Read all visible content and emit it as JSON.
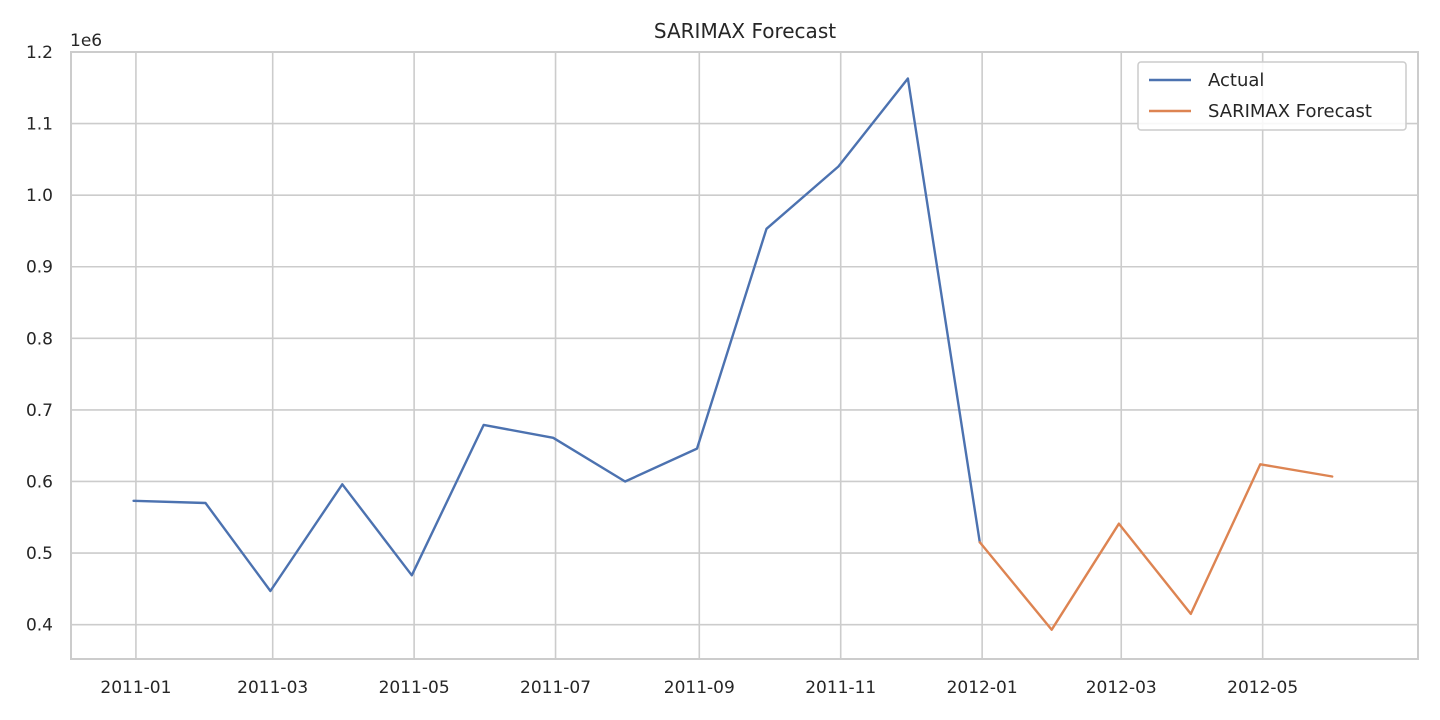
{
  "chart_data": {
    "type": "line",
    "title": "SARIMAX Forecast",
    "xlabel": "",
    "ylabel": "",
    "y_offset_text": "1e6",
    "ylim": [
      0.352,
      1.2
    ],
    "xlim": [
      "2010-12-04",
      "2012-07-07"
    ],
    "y_ticks": [
      0.4,
      0.5,
      0.6,
      0.7,
      0.8,
      0.9,
      1.0,
      1.1,
      1.2
    ],
    "y_tick_labels": [
      "0.4",
      "0.5",
      "0.6",
      "0.7",
      "0.8",
      "0.9",
      "1.0",
      "1.1",
      "1.2"
    ],
    "x_ticks": [
      "2011-01-01",
      "2011-03-01",
      "2011-05-01",
      "2011-07-01",
      "2011-09-01",
      "2011-11-01",
      "2012-01-01",
      "2012-03-01",
      "2012-05-01"
    ],
    "x_tick_labels": [
      "2011-01",
      "2011-03",
      "2011-05",
      "2011-07",
      "2011-09",
      "2011-11",
      "2012-01",
      "2012-03",
      "2012-05"
    ],
    "grid": true,
    "legend_position": "top-right",
    "series": [
      {
        "name": "Actual",
        "color": "#4c72b0",
        "x": [
          "2010-12-31",
          "2011-01-31",
          "2011-02-28",
          "2011-03-31",
          "2011-04-30",
          "2011-05-31",
          "2011-06-30",
          "2011-07-31",
          "2011-08-31",
          "2011-09-30",
          "2011-10-31",
          "2011-11-30",
          "2011-12-31"
        ],
        "y": [
          0.573,
          0.57,
          0.447,
          0.596,
          0.469,
          0.679,
          0.661,
          0.6,
          0.646,
          0.953,
          1.04,
          1.163,
          0.515
        ]
      },
      {
        "name": "SARIMAX Forecast",
        "color": "#dd8452",
        "x": [
          "2011-12-31",
          "2012-01-31",
          "2012-02-29",
          "2012-03-31",
          "2012-04-30",
          "2012-05-31"
        ],
        "y": [
          0.515,
          0.393,
          0.541,
          0.415,
          0.624,
          0.607
        ]
      }
    ]
  }
}
